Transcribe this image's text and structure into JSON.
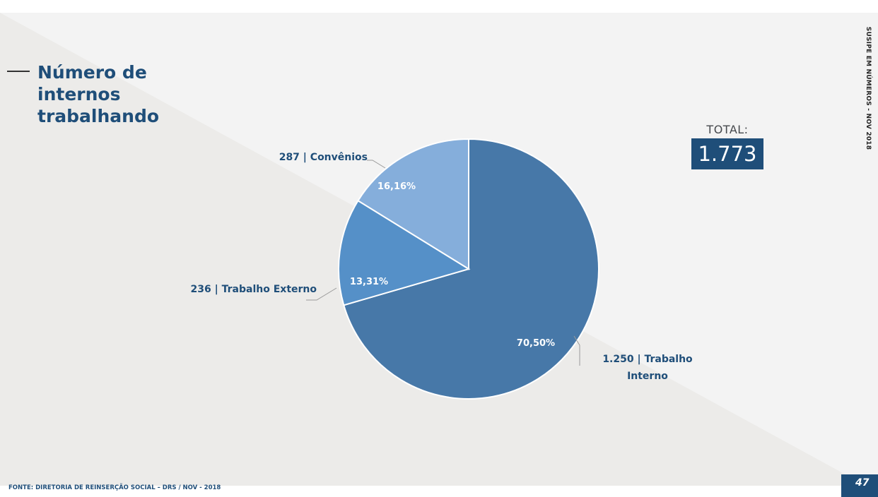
{
  "slide": {
    "title": "Número de internos trabalhando",
    "side_label": "SUSIPE EM NÚMEROS - NOV 2018",
    "source": "FONTE: DIRETORIA DE REINSERÇÃO SOCIAL – DRS / NOV - 2018",
    "page_number": "47",
    "total_label": "TOTAL:",
    "total_value": "1.773"
  },
  "colors": {
    "navy": "#1f4e79",
    "background_light": "#f3f3f3",
    "background_diagonal": "#ecebe9",
    "slice_interno": "#4778a8",
    "slice_externo": "#5590c8",
    "slice_convenios": "#85aedb"
  },
  "chart_data": {
    "type": "pie",
    "slices": [
      {
        "category": "Trabalho Interno",
        "value": 1250,
        "label": "1.250 | Trabalho Interno",
        "label_line1": "1.250 | Trabalho",
        "label_line2": "Interno",
        "percent": 70.5,
        "percent_label": "70,50%",
        "color": "#4778a8"
      },
      {
        "category": "Trabalho Externo",
        "value": 236,
        "label": "236 | Trabalho Externo",
        "percent": 13.31,
        "percent_label": "13,31%",
        "color": "#5590c8"
      },
      {
        "category": "Convênios",
        "value": 287,
        "label": "287 | Convênios",
        "percent": 16.16,
        "percent_label": "16,16%",
        "color": "#85aedb"
      }
    ],
    "start": "12 o'clock",
    "direction": "clockwise"
  }
}
